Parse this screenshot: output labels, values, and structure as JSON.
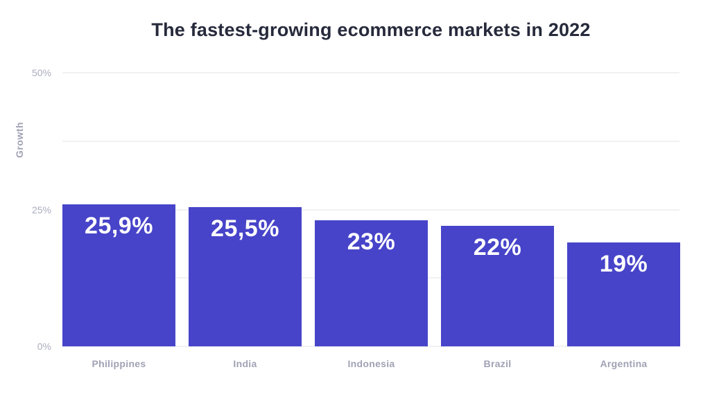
{
  "chart_data": {
    "type": "bar",
    "title": "The fastest-growing ecommerce markets in 2022",
    "categories": [
      "Philippines",
      "India",
      "Indonesia",
      "Brazil",
      "Argentina"
    ],
    "values": [
      25.9,
      25.5,
      23,
      22,
      19
    ],
    "value_labels": [
      "25,9%",
      "25,5%",
      "23%",
      "22%",
      "19%"
    ],
    "xlabel": "",
    "ylabel": "Growth",
    "ylim": [
      0,
      50
    ],
    "yticks": [
      {
        "value": 0,
        "label": "0%"
      },
      {
        "value": 25,
        "label": "25%"
      },
      {
        "value": 50,
        "label": "50%"
      }
    ],
    "gridline_interval": 12.5,
    "grid": true,
    "legend": false,
    "colors": {
      "bar": "#4744c9",
      "bar_label": "#ffffff",
      "title": "#262a3b",
      "tick_label": "#abadbe",
      "axis_label": "#9fa2b4",
      "category_label": "#a0a2b4",
      "gridline": "#f1f1f4",
      "background": "#ffffff"
    }
  }
}
